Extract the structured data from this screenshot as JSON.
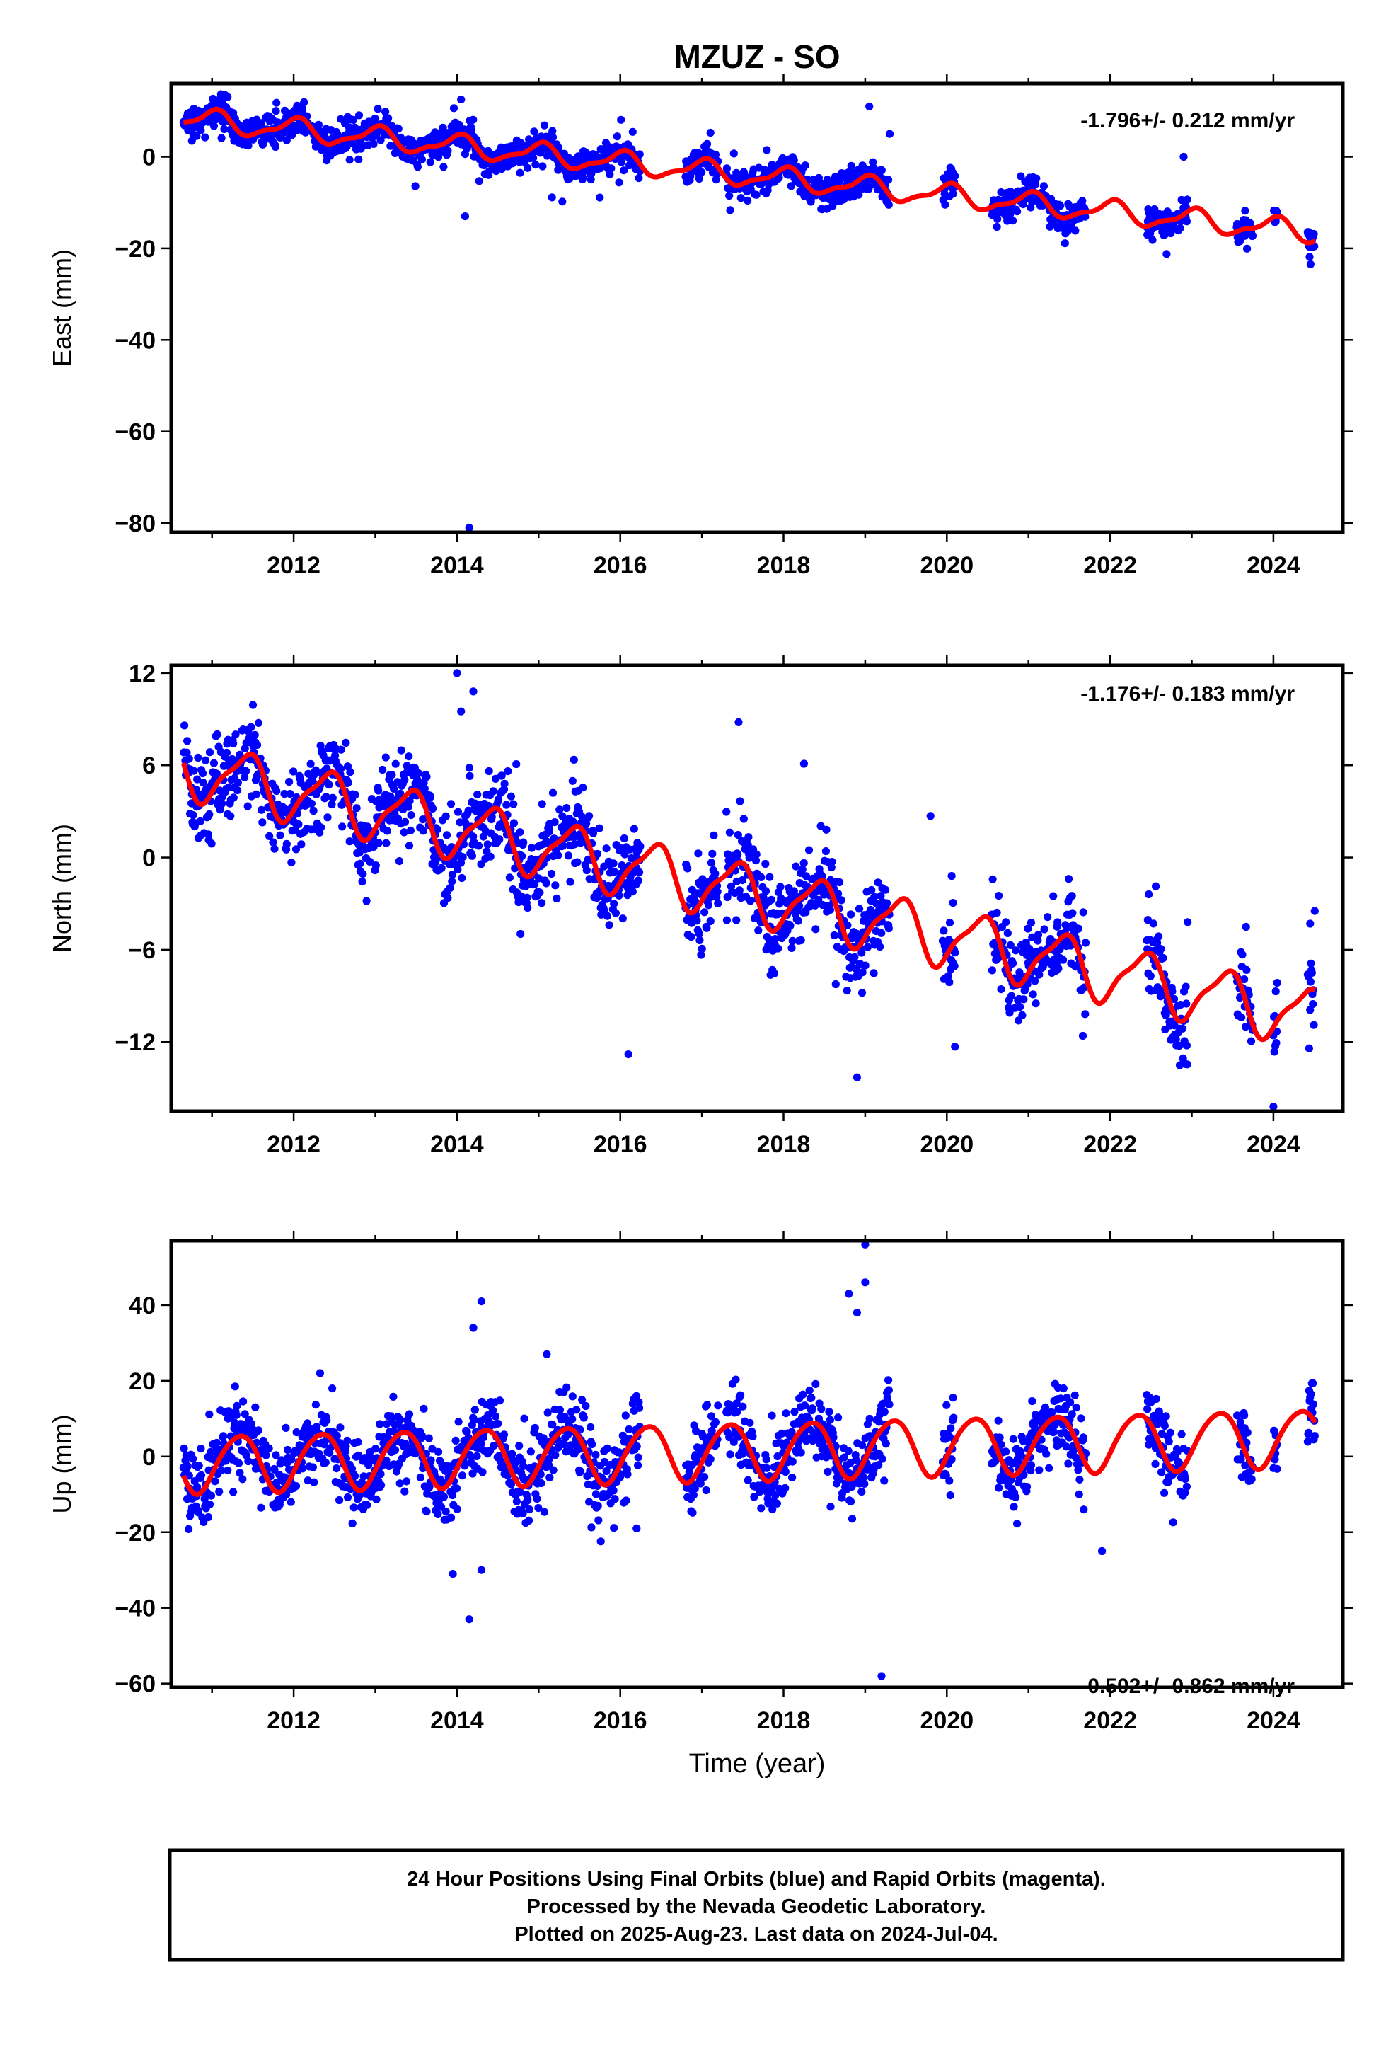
{
  "header": {
    "title": "MZUZ - SO"
  },
  "footer": {
    "lines": [
      "24 Hour Positions Using Final Orbits (blue) and Rapid Orbits (magenta).",
      "Processed by the Nevada Geodetic Laboratory.",
      "Plotted on 2025-Aug-23. Last data on 2024-Jul-04."
    ]
  },
  "colors": {
    "final_orbits": "#0000ff",
    "model_fit": "#ff0000",
    "frame": "#000000"
  },
  "chart_data": [
    {
      "type": "scatter",
      "component": "East",
      "ylabel": "East (mm)",
      "xlabel": "",
      "xlim": [
        2010.5,
        2024.85
      ],
      "ylim": [
        -82,
        16
      ],
      "x_ticks": [
        "2012",
        "2014",
        "2016",
        "2018",
        "2020",
        "2022",
        "2024"
      ],
      "y_ticks": [
        "0",
        "−20",
        "−40",
        "−60",
        "−80"
      ],
      "rate_label": "-1.796+/- 0.212 mm/yr",
      "rate_mm_per_yr": -1.796,
      "rate_uncertainty": 0.212,
      "model": {
        "offset": 8.6,
        "slope": -1.796,
        "annual_amp": 2.2,
        "annual_phase": 1.5,
        "semiannual_amp": 0.8,
        "semiannual_phase": 0.3
      },
      "scatter_sd": 1.7,
      "data_segments": [
        [
          2010.65,
          2016.25
        ],
        [
          2016.8,
          2017.2
        ],
        [
          2017.3,
          2019.3
        ],
        [
          2019.95,
          2020.1
        ],
        [
          2020.55,
          2021.7
        ],
        [
          2022.45,
          2022.95
        ],
        [
          2023.55,
          2023.75
        ],
        [
          2024.0,
          2024.05
        ],
        [
          2024.42,
          2024.51
        ]
      ],
      "outliers": [
        [
          2014.15,
          -81
        ],
        [
          2014.05,
          12.5
        ],
        [
          2014.1,
          -13
        ],
        [
          2019.05,
          11
        ],
        [
          2019.3,
          5
        ],
        [
          2022.9,
          0
        ]
      ]
    },
    {
      "type": "scatter",
      "component": "North",
      "ylabel": "North (mm)",
      "xlabel": "",
      "xlim": [
        2010.5,
        2024.85
      ],
      "ylim": [
        -16.5,
        12.5
      ],
      "x_ticks": [
        "2012",
        "2014",
        "2016",
        "2018",
        "2020",
        "2022",
        "2024"
      ],
      "y_ticks": [
        "12",
        "6",
        "0",
        "−6",
        "−12"
      ],
      "rate_label": "-1.176+/- 0.183 mm/yr",
      "rate_mm_per_yr": -1.176,
      "rate_uncertainty": 0.183,
      "model": {
        "offset": 6.0,
        "slope": -1.176,
        "annual_amp": 1.8,
        "annual_phase": -1.0,
        "semiannual_amp": 0.5,
        "semiannual_phase": 0.8
      },
      "scatter_sd": 1.4,
      "data_segments": [
        [
          2010.65,
          2016.25
        ],
        [
          2016.8,
          2017.2
        ],
        [
          2017.3,
          2019.3
        ],
        [
          2019.95,
          2020.1
        ],
        [
          2020.55,
          2021.7
        ],
        [
          2022.45,
          2022.95
        ],
        [
          2023.55,
          2023.75
        ],
        [
          2024.0,
          2024.05
        ],
        [
          2024.42,
          2024.51
        ]
      ],
      "outliers": [
        [
          2014.0,
          12
        ],
        [
          2014.2,
          10.8
        ],
        [
          2014.05,
          9.5
        ],
        [
          2016.1,
          -12.8
        ],
        [
          2018.9,
          -14.3
        ],
        [
          2018.25,
          6.1
        ],
        [
          2017.45,
          8.8
        ],
        [
          2019.8,
          2.7
        ],
        [
          2020.1,
          -12.3
        ],
        [
          2024.0,
          -16.2
        ],
        [
          2024.45,
          -4.3
        ],
        [
          2022.95,
          -4.2
        ]
      ]
    },
    {
      "type": "scatter",
      "component": "Up",
      "ylabel": "Up (mm)",
      "xlabel": "Time (year)",
      "xlim": [
        2010.5,
        2024.85
      ],
      "ylim": [
        -61,
        57
      ],
      "x_ticks": [
        "2012",
        "2014",
        "2016",
        "2018",
        "2020",
        "2022",
        "2024"
      ],
      "y_ticks": [
        "40",
        "20",
        "0",
        "−20",
        "−40",
        "−60"
      ],
      "rate_label": "0.502+/- 0.862 mm/yr",
      "rate_mm_per_yr": 0.502,
      "rate_uncertainty": 0.862,
      "model": {
        "offset": -2.0,
        "slope": 0.502,
        "annual_amp": 7.5,
        "annual_phase": -0.5,
        "semiannual_amp": 0.8,
        "semiannual_phase": 1.2
      },
      "scatter_sd": 5.0,
      "data_segments": [
        [
          2010.65,
          2016.25
        ],
        [
          2016.8,
          2017.2
        ],
        [
          2017.3,
          2019.3
        ],
        [
          2019.95,
          2020.1
        ],
        [
          2020.55,
          2021.7
        ],
        [
          2022.45,
          2022.95
        ],
        [
          2023.55,
          2023.75
        ],
        [
          2024.0,
          2024.05
        ],
        [
          2024.42,
          2024.51
        ]
      ],
      "outliers": [
        [
          2014.3,
          41
        ],
        [
          2014.2,
          34
        ],
        [
          2014.15,
          -43
        ],
        [
          2013.95,
          -31
        ],
        [
          2014.3,
          -30
        ],
        [
          2019.0,
          56
        ],
        [
          2018.8,
          43
        ],
        [
          2019.0,
          46
        ],
        [
          2019.2,
          -58
        ],
        [
          2018.9,
          38
        ],
        [
          2021.9,
          -25
        ],
        [
          2016.2,
          -19
        ]
      ]
    }
  ]
}
